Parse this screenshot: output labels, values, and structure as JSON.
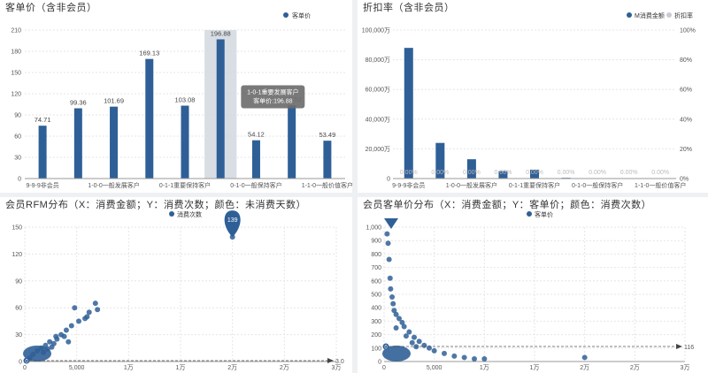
{
  "colors": {
    "bar": "#2f5f97",
    "shadow": "#cfd6de",
    "tooltip": "#6e6e6e",
    "line": "#2f5f97",
    "grid": "#e6e6e6"
  },
  "chart_data": [
    {
      "id": "c1",
      "type": "bar",
      "title": "客单价（含非会员）",
      "legend": [
        "客单价"
      ],
      "categories": [
        "9-9-9非会员",
        "1-0-0一般发展客户",
        "",
        "0-1-1重要保持客户",
        "",
        "1-0-1重要发展客户",
        "0-1-0一般保持客户",
        "",
        "1-1-0一般价值客户"
      ],
      "xlabels": [
        "9-9-9非会员",
        "1-0-0一般发展客户",
        "0-1-1重要保持客户",
        "0-1-0一般保持客户",
        "1-1-0一般价值客户"
      ],
      "values": [
        74.71,
        99.36,
        101.69,
        169.13,
        103.08,
        196.88,
        54.12,
        103.52,
        53.49
      ],
      "labels": [
        "74.71",
        "99.36",
        "101.69",
        "169.13",
        "103.08",
        "196.88",
        "54.12",
        "103.52",
        "53.49"
      ],
      "yticks": [
        "0",
        "30",
        "60",
        "90",
        "120",
        "150",
        "180",
        "210"
      ],
      "ylim": [
        0,
        210
      ],
      "tooltip": {
        "index": 5,
        "title": "1-0-1重要发展客户",
        "line": "客单价:196.88"
      }
    },
    {
      "id": "c2",
      "type": "bar",
      "title": "折扣率（含非会员）",
      "legend": [
        "M消费金额",
        "折扣率"
      ],
      "xlabels": [
        "9-9-9非会员",
        "1-0-0一般发展客户",
        "0-1-1重要保持客户",
        "0-1-0一般保持客户",
        "1-1-0一般价值客户"
      ],
      "values": [
        88000,
        24000,
        13000,
        5000,
        6000,
        500,
        200,
        150,
        100
      ],
      "rate_labels": [
        "0.00%",
        "0.00%",
        "0.00%",
        "0.00%",
        "0.00%",
        "0.00%",
        "0.00%",
        "0.00%",
        "0.00%"
      ],
      "yticks": [
        "0",
        "20,000万",
        "40,000万",
        "60,000万",
        "80,000万",
        "100,000万"
      ],
      "ylim": [
        0,
        100000
      ],
      "y2ticks": [
        "0%",
        "20%",
        "40%",
        "60%",
        "80%",
        "100%"
      ]
    },
    {
      "id": "c3",
      "type": "scatter",
      "title": "会员RFM分布（X：消费金额；Y：消费次数；颜色：未消费天数）",
      "legend": [
        "消费次数"
      ],
      "yticks": [
        "0",
        "30",
        "60",
        "90",
        "120",
        "150"
      ],
      "xticks": [
        "0",
        "5,000",
        "1万",
        "1万",
        "2万",
        "2万",
        "3万"
      ],
      "ylim": [
        0,
        150
      ],
      "xlim": [
        0,
        30000
      ],
      "max_label": "139",
      "max_point": [
        20000,
        139
      ],
      "ref_label": "3.0",
      "points": [
        [
          500,
          4
        ],
        [
          800,
          8
        ],
        [
          1200,
          12
        ],
        [
          1600,
          15
        ],
        [
          2000,
          18
        ],
        [
          2400,
          22
        ],
        [
          2800,
          20
        ],
        [
          3100,
          25
        ],
        [
          1800,
          10
        ],
        [
          2200,
          14
        ],
        [
          3500,
          30
        ],
        [
          4000,
          35
        ],
        [
          3000,
          28
        ],
        [
          4200,
          22
        ],
        [
          2600,
          16
        ],
        [
          4800,
          60
        ],
        [
          4500,
          40
        ],
        [
          5200,
          45
        ],
        [
          6000,
          50
        ],
        [
          6200,
          55
        ],
        [
          6800,
          65
        ],
        [
          7000,
          58
        ],
        [
          5800,
          48
        ],
        [
          3800,
          28
        ],
        [
          20000,
          139
        ]
      ]
    },
    {
      "id": "c4",
      "type": "scatter",
      "title": "会员客单价分布（X：消费金额；Y：客单价；颜色：消费次数）",
      "legend": [
        "客单价"
      ],
      "yticks": [
        "0",
        "100",
        "200",
        "300",
        "400",
        "500",
        "600",
        "700",
        "800",
        "900",
        "1,000"
      ],
      "xticks": [
        "0",
        "5,000",
        "1万",
        "1万",
        "2万",
        "2万",
        "3万"
      ],
      "ylim": [
        0,
        1000
      ],
      "xlim": [
        0,
        30000
      ],
      "max_label": "999",
      "ref_label": "116",
      "points": [
        [
          300,
          950
        ],
        [
          400,
          880
        ],
        [
          500,
          760
        ],
        [
          600,
          620
        ],
        [
          650,
          540
        ],
        [
          800,
          480
        ],
        [
          900,
          430
        ],
        [
          1000,
          380
        ],
        [
          1200,
          350
        ],
        [
          1500,
          320
        ],
        [
          1800,
          290
        ],
        [
          2000,
          260
        ],
        [
          2500,
          220
        ],
        [
          3000,
          180
        ],
        [
          3500,
          150
        ],
        [
          4000,
          120
        ],
        [
          4500,
          100
        ],
        [
          5000,
          80
        ],
        [
          6000,
          60
        ],
        [
          7000,
          40
        ],
        [
          8000,
          30
        ],
        [
          9000,
          20
        ],
        [
          10000,
          20
        ],
        [
          20000,
          30
        ],
        [
          1200,
          250
        ],
        [
          2200,
          190
        ],
        [
          2800,
          140
        ],
        [
          3200,
          110
        ]
      ]
    }
  ]
}
